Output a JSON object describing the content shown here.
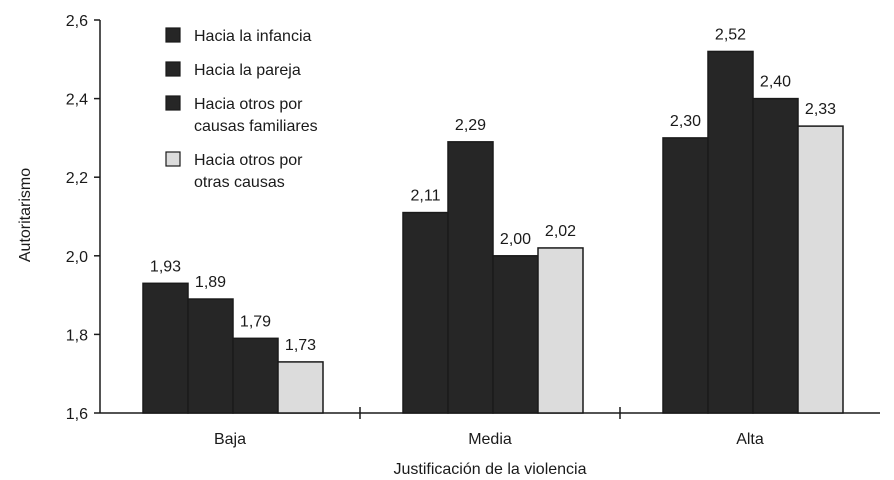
{
  "chart_data": {
    "type": "bar",
    "title": "",
    "xlabel": "Justificación de la violencia",
    "ylabel": "Autoritarismo",
    "ylim": [
      1.6,
      2.6
    ],
    "yticks": [
      "1,6",
      "1,8",
      "2,0",
      "2,2",
      "2,4",
      "2,6"
    ],
    "categories": [
      "Baja",
      "Media",
      "Alta"
    ],
    "grid": false,
    "legend_position": "top-left",
    "series": [
      {
        "name": "Hacia la infancia",
        "color": "#262626",
        "values": [
          1.93,
          2.11,
          2.3
        ],
        "labels": [
          "1,93",
          "2,11",
          "2,30"
        ]
      },
      {
        "name": "Hacia la pareja",
        "color": "#262626",
        "values": [
          1.89,
          2.29,
          2.52
        ],
        "labels": [
          "1,89",
          "2,29",
          "2,52"
        ]
      },
      {
        "name": "Hacia otros por causas familiares",
        "legend_lines": [
          "Hacia otros por",
          "causas familiares"
        ],
        "color": "#262626",
        "values": [
          1.79,
          2.0,
          2.4
        ],
        "labels": [
          "1,79",
          "2,00",
          "2,40"
        ]
      },
      {
        "name": "Hacia otros por otras causas",
        "legend_lines": [
          "Hacia otros por",
          "otras causas"
        ],
        "color": "#dcdcdc",
        "values": [
          1.73,
          2.02,
          2.33
        ],
        "labels": [
          "1,73",
          "2,02",
          "2,33"
        ]
      }
    ]
  }
}
